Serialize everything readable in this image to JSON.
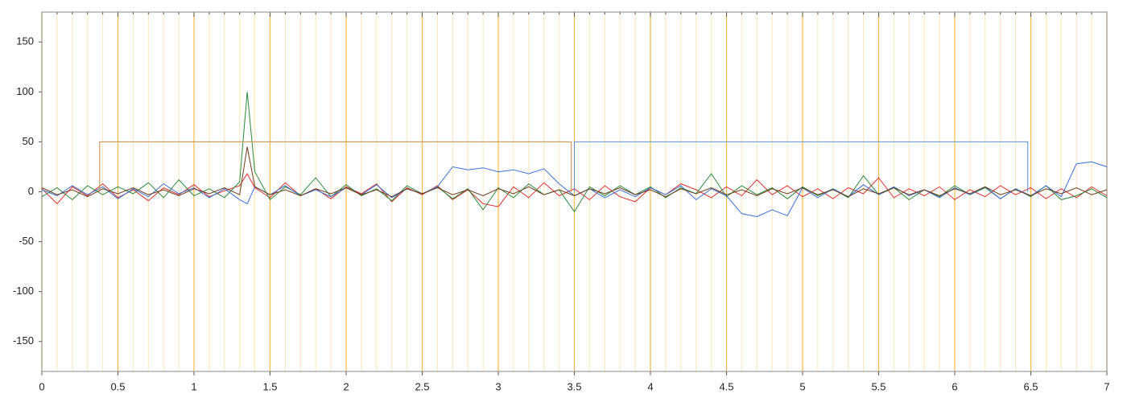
{
  "chart_data": {
    "type": "line",
    "xlim": [
      0,
      7
    ],
    "ylim": [
      -180,
      180
    ],
    "xticks": [
      0,
      0.5,
      1,
      1.5,
      2,
      2.5,
      3,
      3.5,
      4,
      4.5,
      5,
      5.5,
      6,
      6.5,
      7
    ],
    "yticks": [
      -150,
      -100,
      -50,
      0,
      50,
      100,
      150
    ],
    "xminor": [
      0.1,
      0.2,
      0.3,
      0.4,
      0.6,
      0.7,
      0.8,
      0.9,
      1.1,
      1.2,
      1.3,
      1.4,
      1.6,
      1.7,
      1.8,
      1.9,
      2.1,
      2.2,
      2.3,
      2.4,
      2.6,
      2.7,
      2.8,
      2.9,
      3.1,
      3.2,
      3.3,
      3.4,
      3.6,
      3.7,
      3.8,
      3.9,
      4.1,
      4.2,
      4.3,
      4.4,
      4.6,
      4.7,
      4.8,
      4.9,
      5.1,
      5.2,
      5.3,
      5.4,
      5.6,
      5.7,
      5.8,
      5.9,
      6.1,
      6.2,
      6.3,
      6.4,
      6.6,
      6.7,
      6.8,
      6.9
    ],
    "grid": true,
    "grid_color": "#f5b942",
    "x": [
      0,
      0.1,
      0.2,
      0.3,
      0.4,
      0.5,
      0.6,
      0.7,
      0.8,
      0.9,
      1,
      1.1,
      1.2,
      1.3,
      1.35,
      1.4,
      1.5,
      1.6,
      1.7,
      1.8,
      1.9,
      2,
      2.1,
      2.2,
      2.3,
      2.4,
      2.5,
      2.6,
      2.7,
      2.8,
      2.9,
      3,
      3.1,
      3.2,
      3.3,
      3.4,
      3.5,
      3.6,
      3.7,
      3.8,
      3.9,
      4,
      4.1,
      4.2,
      4.3,
      4.4,
      4.5,
      4.6,
      4.7,
      4.8,
      4.9,
      5,
      5.1,
      5.2,
      5.3,
      5.4,
      5.5,
      5.6,
      5.7,
      5.8,
      5.9,
      6,
      6.1,
      6.2,
      6.3,
      6.4,
      6.5,
      6.6,
      6.7,
      6.8,
      6.9,
      7
    ],
    "series": [
      {
        "color": "#e03030",
        "values": [
          3,
          -12,
          5,
          -4,
          8,
          -6,
          2,
          -9,
          4,
          -3,
          7,
          -5,
          1,
          6,
          18,
          4,
          -6,
          9,
          -4,
          3,
          -7,
          5,
          -2,
          8,
          -10,
          4,
          -3,
          6,
          -8,
          2,
          -12,
          -15,
          5,
          -6,
          9,
          -4,
          3,
          -8,
          6,
          -5,
          -10,
          4,
          -3,
          8,
          2,
          -6,
          5,
          -4,
          12,
          -3,
          6,
          -5,
          3,
          -7,
          4,
          -2,
          14,
          -6,
          3,
          -4,
          5,
          -8,
          2,
          -5,
          6,
          -3,
          4,
          -7,
          3,
          -6,
          5,
          -4
        ]
      },
      {
        "color": "#2a8a3a",
        "values": [
          -5,
          4,
          -8,
          6,
          -3,
          5,
          -2,
          9,
          -6,
          12,
          -4,
          3,
          -6,
          10,
          100,
          20,
          -8,
          5,
          -3,
          14,
          -5,
          7,
          -4,
          3,
          -9,
          6,
          -2,
          5,
          -7,
          3,
          -18,
          4,
          -6,
          8,
          -3,
          2,
          -20,
          5,
          -4,
          6,
          -3,
          5,
          -6,
          4,
          -2,
          18,
          -5,
          6,
          -3,
          4,
          -7,
          5,
          -4,
          3,
          -6,
          16,
          -3,
          4,
          -8,
          2,
          -5,
          6,
          -3,
          4,
          -7,
          3,
          -5,
          6,
          -8,
          -4,
          3,
          -6
        ]
      },
      {
        "color": "#3a6fd8",
        "values": [
          2,
          -4,
          6,
          -3,
          5,
          -7,
          3,
          -5,
          8,
          -2,
          4,
          -6,
          3,
          -8,
          -12,
          5,
          -3,
          6,
          -4,
          2,
          -5,
          4,
          -3,
          7,
          -6,
          3,
          -2,
          5,
          25,
          22,
          24,
          20,
          22,
          18,
          23,
          8,
          -4,
          3,
          -6,
          2,
          -5,
          4,
          -3,
          6,
          -8,
          3,
          -4,
          -22,
          -25,
          -18,
          -24,
          4,
          -6,
          3,
          -5,
          7,
          -3,
          5,
          -4,
          2,
          -6,
          4,
          -3,
          5,
          -7,
          3,
          -4,
          6,
          -5,
          28,
          30,
          25
        ]
      },
      {
        "color": "#6b3a1a",
        "values": [
          4,
          -3,
          2,
          -5,
          3,
          -2,
          4,
          -3,
          2,
          -4,
          3,
          -2,
          4,
          -3,
          45,
          5,
          -3,
          2,
          -4,
          3,
          -2,
          4,
          -3,
          2,
          -5,
          3,
          -2,
          4,
          -3,
          2,
          -4,
          3,
          -2,
          5,
          -3,
          2,
          -4,
          3,
          -2,
          4,
          -3,
          2,
          -5,
          3,
          -2,
          4,
          -3,
          2,
          -4,
          3,
          -2,
          4,
          -3,
          2,
          -5,
          3,
          -2,
          4,
          -3,
          2,
          -4,
          3,
          -2,
          5,
          -3,
          2,
          -4,
          3,
          -2,
          4,
          -3,
          2
        ]
      },
      {
        "color": "#c8893a",
        "x": [
          0.38,
          0.38,
          3.48,
          3.48
        ],
        "values": [
          0,
          50,
          50,
          0
        ]
      },
      {
        "color": "#5b8fd8",
        "x": [
          3.5,
          3.5,
          6.48,
          6.48
        ],
        "values": [
          0,
          50,
          50,
          0
        ]
      }
    ]
  }
}
